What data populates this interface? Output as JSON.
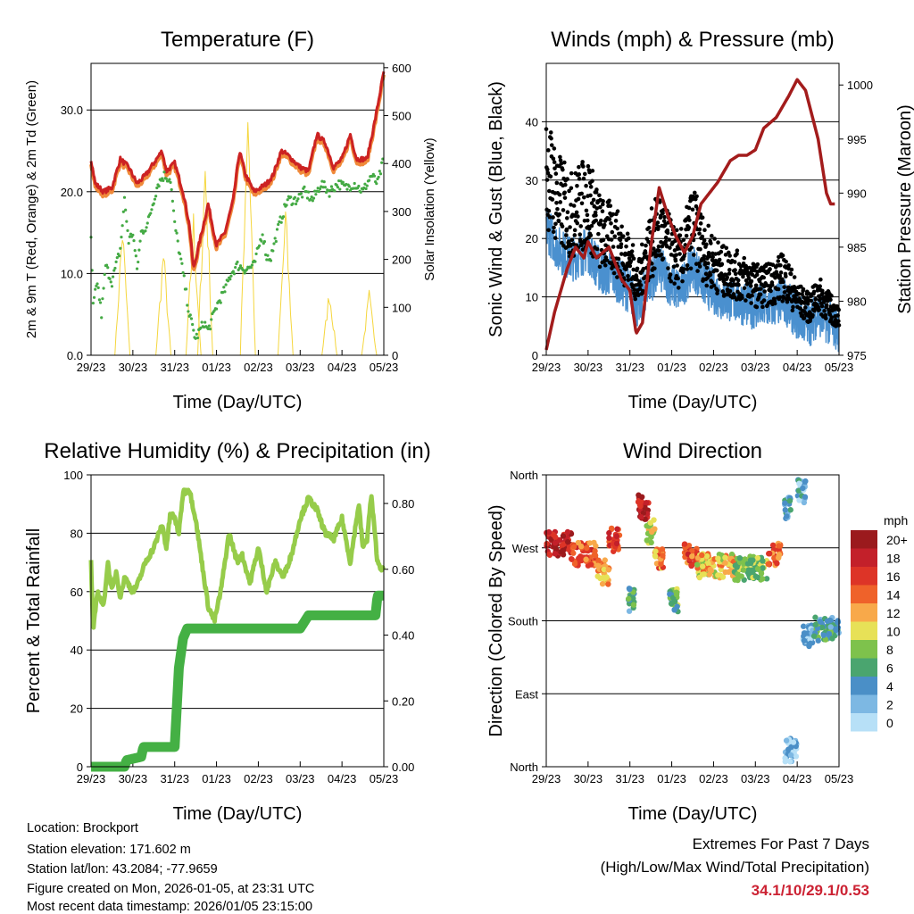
{
  "chart_data": [
    {
      "type": "line",
      "title": "Temperature (F)",
      "xlabel": "Time (Day/UTC)",
      "ylabel": "2m & 9m T (Red, Orange) & 2m Td (Green)",
      "ylabel_right": "Solar Insolation (Yellow)",
      "x_ticks": [
        "29/23",
        "30/23",
        "31/23",
        "01/23",
        "02/23",
        "03/23",
        "04/23",
        "05/23"
      ],
      "y_ticks": [
        "0.0",
        "10.0",
        "20.0",
        "30.0"
      ],
      "y_ticks_right": [
        "0",
        "100",
        "200",
        "300",
        "400",
        "500",
        "600"
      ],
      "ylim": [
        0,
        35.7
      ],
      "ylim_right": [
        0,
        609
      ],
      "xlim": [
        0,
        7
      ],
      "series": [
        {
          "name": "2m T",
          "color": "#cc2222",
          "x": [
            0,
            0.1,
            0.3,
            0.5,
            0.7,
            0.9,
            1.1,
            1.3,
            1.5,
            1.7,
            1.8,
            2.0,
            2.2,
            2.35,
            2.45,
            2.6,
            2.8,
            3.0,
            3.2,
            3.4,
            3.55,
            3.7,
            3.9,
            4.2,
            4.35,
            4.55,
            4.7,
            5.0,
            5.2,
            5.4,
            5.6,
            5.8,
            6.0,
            6.2,
            6.35,
            6.6,
            6.8,
            7.0
          ],
          "y": [
            24,
            21,
            20,
            20.5,
            24,
            23,
            21,
            22,
            23.5,
            25,
            22.5,
            23.5,
            20,
            16,
            10.5,
            14,
            18.5,
            13.5,
            15,
            19,
            25,
            22,
            20,
            21,
            22,
            25,
            24.5,
            23,
            22.5,
            27,
            26,
            23,
            24,
            27,
            24,
            24,
            29,
            34.7
          ]
        },
        {
          "name": "2m Td",
          "color": "#44aa44",
          "x": [
            0,
            0.05,
            0.15,
            0.25,
            0.35,
            0.5,
            0.7,
            0.8,
            0.9,
            1.0,
            1.1,
            1.2,
            1.35,
            1.5,
            1.6,
            1.75,
            1.9,
            2.0,
            2.2,
            2.35,
            2.5,
            2.7,
            2.8,
            3.0,
            3.2,
            3.35,
            3.5,
            3.7,
            3.9,
            4.0,
            4.1,
            4.2,
            4.3,
            4.5,
            4.7,
            4.9,
            5.1,
            5.3,
            5.5,
            5.7,
            5.9,
            6.1,
            6.3,
            6.5,
            6.7,
            6.85,
            7.0
          ],
          "y": [
            14,
            6,
            9,
            5,
            11,
            9,
            13,
            19,
            14,
            15,
            10.5,
            15,
            16,
            19,
            21,
            22,
            21.5,
            16,
            10,
            5,
            2,
            4,
            3,
            6,
            8,
            10,
            11,
            10.5,
            11,
            13,
            15,
            12,
            12,
            16,
            19,
            19,
            20,
            19,
            21,
            20,
            21,
            20.5,
            21,
            20,
            22,
            21,
            24
          ]
        },
        {
          "name": "Solar Insolation",
          "color": "#f5d63d",
          "axis": "right",
          "peaks_x": [
            0.75,
            1.73,
            2.45,
            2.73,
            3.75,
            4.65,
            5.7,
            6.65
          ],
          "peaks_y": [
            300,
            240,
            310,
            450,
            600,
            330,
            150,
            140
          ]
        }
      ]
    },
    {
      "type": "scatter",
      "title": "Winds (mph) & Pressure (mb)",
      "xlabel": "Time (Day/UTC)",
      "ylabel": "Sonic Wind & Gust (Blue, Black)",
      "ylabel_right": "Station Pressure (Maroon)",
      "x_ticks": [
        "29/23",
        "30/23",
        "31/23",
        "01/23",
        "02/23",
        "03/23",
        "04/23",
        "05/23"
      ],
      "y_ticks": [
        "0",
        "10",
        "20",
        "30",
        "40"
      ],
      "y_ticks_right": [
        "975",
        "980",
        "985",
        "990",
        "995",
        "1000"
      ],
      "ylim": [
        0,
        50
      ],
      "ylim_right": [
        975,
        1002
      ],
      "xlim": [
        0,
        7
      ],
      "gust_trend": {
        "x": [
          0,
          0.3,
          0.6,
          1.0,
          1.3,
          1.6,
          2.0,
          2.2,
          2.4,
          2.7,
          3.0,
          3.2,
          3.5,
          3.8,
          4.2,
          4.6,
          5.0,
          5.3,
          5.7,
          6.0,
          6.3,
          6.5,
          7.0
        ],
        "y": [
          40,
          33,
          30,
          33,
          26,
          25,
          20,
          15,
          22,
          27,
          22,
          20,
          28,
          22,
          18,
          17,
          15,
          15,
          17,
          12,
          10,
          13,
          8
        ]
      },
      "pressure": {
        "x": [
          0,
          0.2,
          0.5,
          0.7,
          0.9,
          1.0,
          1.2,
          1.5,
          1.8,
          2.0,
          2.15,
          2.3,
          2.5,
          2.7,
          2.9,
          3.1,
          3.3,
          3.5,
          3.7,
          3.9,
          4.1,
          4.4,
          4.6,
          4.8,
          5.0,
          5.2,
          5.5,
          5.8,
          6.0,
          6.2,
          6.5,
          6.7,
          6.8,
          6.9
        ],
        "y": [
          975.5,
          979,
          983,
          985,
          984,
          985.5,
          984,
          985,
          982,
          981,
          977,
          978,
          985,
          990.5,
          988,
          986,
          984.5,
          986,
          989,
          990,
          991,
          993,
          993.5,
          993.5,
          994,
          996,
          997,
          999,
          1000.5,
          999.5,
          995,
          990,
          989,
          989
        ]
      }
    },
    {
      "type": "line",
      "title": "Relative Humidity (%) & Precipitation (in)",
      "xlabel": "Time (Day/UTC)",
      "ylabel": "Percent & Total Rainfall",
      "x_ticks": [
        "29/23",
        "30/23",
        "31/23",
        "01/23",
        "02/23",
        "03/23",
        "04/23",
        "05/23"
      ],
      "y_ticks": [
        "0",
        "20",
        "40",
        "60",
        "80",
        "100"
      ],
      "y_ticks_right": [
        "0.00",
        "0.20",
        "0.40",
        "0.60",
        "0.80"
      ],
      "ylim": [
        0,
        100
      ],
      "ylim_right": [
        0,
        0.887
      ],
      "xlim": [
        0,
        7
      ],
      "series": [
        {
          "name": "RH",
          "color": "#96cc4a",
          "x": [
            0,
            0.05,
            0.15,
            0.3,
            0.4,
            0.5,
            0.6,
            0.7,
            0.8,
            1.0,
            1.1,
            1.3,
            1.5,
            1.7,
            1.8,
            1.9,
            2.0,
            2.1,
            2.2,
            2.35,
            2.5,
            2.65,
            2.8,
            2.95,
            3.1,
            3.3,
            3.5,
            3.6,
            3.8,
            4.0,
            4.2,
            4.4,
            4.6,
            4.8,
            5.0,
            5.2,
            5.4,
            5.6,
            5.8,
            6.0,
            6.2,
            6.4,
            6.5,
            6.6,
            6.7,
            6.85,
            7.0
          ],
          "y": [
            70,
            46,
            60,
            55,
            70,
            60,
            67,
            58,
            65,
            60,
            62,
            70,
            75,
            83,
            75,
            87,
            85,
            80,
            94,
            95,
            85,
            70,
            55,
            50,
            60,
            80,
            70,
            73,
            63,
            75,
            60,
            70,
            65,
            73,
            85,
            92,
            88,
            80,
            78,
            85,
            70,
            90,
            75,
            78,
            93,
            70,
            67
          ]
        },
        {
          "name": "Total Precipitation",
          "color": "#44b044",
          "axis": "right",
          "x": [
            0,
            0.8,
            0.85,
            1.2,
            1.25,
            2.0,
            2.1,
            2.2,
            2.3,
            5.0,
            5.2,
            6.8,
            6.85,
            7.0
          ],
          "y": [
            0,
            0,
            0.02,
            0.03,
            0.06,
            0.06,
            0.3,
            0.39,
            0.42,
            0.42,
            0.46,
            0.46,
            0.52,
            0.52
          ]
        }
      ]
    },
    {
      "type": "scatter",
      "title": "Wind Direction",
      "xlabel": "Time (Day/UTC)",
      "ylabel": "Direction (Colored By Speed)",
      "x_ticks": [
        "29/23",
        "30/23",
        "31/23",
        "01/23",
        "02/23",
        "03/23",
        "04/23",
        "05/23"
      ],
      "y_ticks": [
        "North",
        "East",
        "South",
        "West",
        "North"
      ],
      "ylim": [
        0,
        360
      ],
      "xlim": [
        0,
        7
      ],
      "clusters": [
        [
          0,
          0.6,
          275,
          18
        ],
        [
          0.6,
          1.2,
          262,
          15
        ],
        [
          1.2,
          1.5,
          240,
          12
        ],
        [
          1.5,
          1.75,
          280,
          16
        ],
        [
          1.95,
          2.1,
          205,
          5
        ],
        [
          2.2,
          2.45,
          320,
          18
        ],
        [
          2.4,
          2.6,
          290,
          10
        ],
        [
          2.6,
          2.8,
          255,
          13
        ],
        [
          2.95,
          3.15,
          205,
          7
        ],
        [
          3.3,
          3.6,
          262,
          15
        ],
        [
          3.6,
          4.5,
          248,
          11
        ],
        [
          4.5,
          5.3,
          245,
          8
        ],
        [
          5.3,
          5.6,
          262,
          14
        ],
        [
          5.7,
          5.85,
          320,
          4
        ],
        [
          5.7,
          6.0,
          20,
          2
        ],
        [
          6.0,
          6.2,
          340,
          3
        ],
        [
          6.1,
          6.4,
          160,
          2
        ],
        [
          6.4,
          7.0,
          170,
          5
        ]
      ],
      "legend": {
        "title": "mph",
        "labels": [
          "20+",
          "18",
          "16",
          "14",
          "12",
          "10",
          "8",
          "6",
          "4",
          "2",
          "0"
        ],
        "colors": [
          "#9b1a1d",
          "#c3202a",
          "#dd3427",
          "#ef622a",
          "#f8a94a",
          "#e7e157",
          "#7ec24c",
          "#4aa56f",
          "#4a8fc7",
          "#7db8e3",
          "#b7e0f7"
        ],
        "placement": "right"
      }
    }
  ],
  "info": {
    "location": "Location: Brockport",
    "elevation": "Station elevation: 171.602 m",
    "latlon": "Station lat/lon: 43.2084; -77.9659",
    "created": "Figure created on Mon, 2026-01-05, at 23:31 UTC",
    "recent": "Most recent data timestamp: 2026/01/05 23:15:00"
  },
  "extremes": {
    "title": "Extremes For Past 7 Days",
    "subtitle": "(High/Low/Max Wind/Total Precipitation)",
    "values": "34.1/10/29.1/0.53",
    "color": "#cc2233"
  }
}
